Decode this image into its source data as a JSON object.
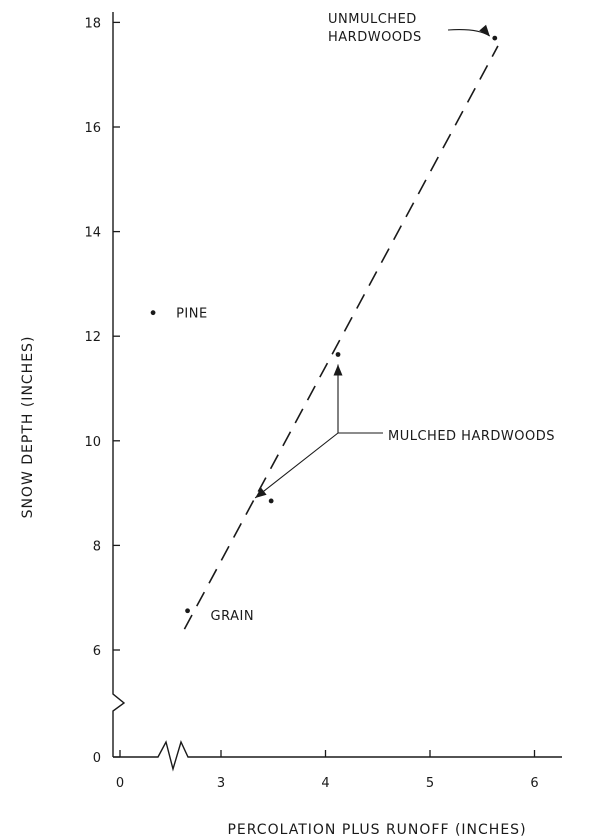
{
  "chart_data": {
    "type": "scatter",
    "xlabel": "PERCOLATION PLUS RUNOFF (INCHES)",
    "ylabel": "SNOW DEPTH (INCHES)",
    "x_ticks": [
      {
        "value": 0,
        "label": "0"
      },
      {
        "value": 3,
        "label": "3"
      },
      {
        "value": 4,
        "label": "4"
      },
      {
        "value": 5,
        "label": "5"
      },
      {
        "value": 6,
        "label": "6"
      }
    ],
    "y_ticks": [
      {
        "value": 0,
        "label": "0"
      },
      {
        "value": 6,
        "label": "6"
      },
      {
        "value": 8,
        "label": "8"
      },
      {
        "value": 10,
        "label": "10"
      },
      {
        "value": 12,
        "label": "12"
      },
      {
        "value": 14,
        "label": "14"
      },
      {
        "value": 16,
        "label": "16"
      },
      {
        "value": 18,
        "label": "18"
      }
    ],
    "axis_breaks": {
      "x": "between 0 and 3",
      "y": "between 0 and 6"
    },
    "points": [
      {
        "id": "pine",
        "x": 2.35,
        "y": 12.45,
        "label": "PINE"
      },
      {
        "id": "grain",
        "x": 2.68,
        "y": 6.75,
        "label": "GRAIN"
      },
      {
        "id": "mulched-low",
        "x": 3.48,
        "y": 8.85
      },
      {
        "id": "mulched-high",
        "x": 4.12,
        "y": 11.65
      },
      {
        "id": "unmulched",
        "x": 5.62,
        "y": 17.7
      }
    ],
    "annotations": [
      {
        "id": "unmulched-label",
        "lines": [
          "UNMULCHED",
          "HARDWOODS"
        ],
        "points_to": [
          "unmulched"
        ]
      },
      {
        "id": "mulched-label",
        "lines": [
          "MULCHED HARDWOODS"
        ],
        "points_to": [
          "mulched-low",
          "mulched-high"
        ]
      }
    ],
    "trend_line": {
      "style": "dashed",
      "from": {
        "x": 2.65,
        "y": 6.4
      },
      "to": {
        "x": 5.65,
        "y": 17.55
      }
    },
    "grid": false,
    "legend": "none"
  }
}
